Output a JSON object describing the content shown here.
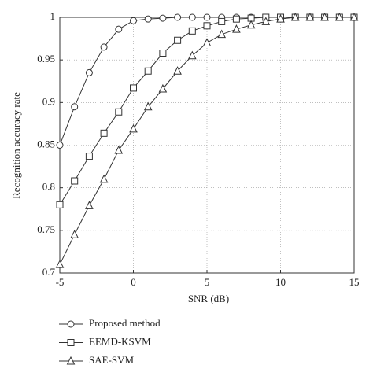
{
  "chart_data": {
    "type": "line",
    "xlabel": "SNR (dB)",
    "ylabel": "Recognition accuracy rate",
    "x": [
      -5,
      -4,
      -3,
      -2,
      -1,
      0,
      1,
      2,
      3,
      4,
      5,
      6,
      7,
      8,
      9,
      10,
      11,
      12,
      13,
      14,
      15
    ],
    "series": [
      {
        "name": "Proposed method",
        "color": "#333333",
        "marker": "circle",
        "values": [
          0.85,
          0.895,
          0.935,
          0.965,
          0.986,
          0.996,
          0.998,
          0.999,
          1,
          1,
          1,
          1,
          1,
          1,
          1,
          1,
          1,
          1,
          1,
          1,
          1
        ]
      },
      {
        "name": "EEMD-KSVM",
        "color": "#333333",
        "marker": "square",
        "values": [
          0.78,
          0.808,
          0.837,
          0.864,
          0.889,
          0.917,
          0.937,
          0.958,
          0.973,
          0.984,
          0.99,
          0.995,
          0.998,
          0.999,
          1,
          1,
          1,
          1,
          1,
          1,
          1
        ]
      },
      {
        "name": "SAE-SVM",
        "color": "#333333",
        "marker": "triangle",
        "values": [
          0.71,
          0.745,
          0.779,
          0.81,
          0.844,
          0.869,
          0.895,
          0.916,
          0.937,
          0.955,
          0.97,
          0.98,
          0.986,
          0.991,
          0.995,
          0.998,
          1,
          1,
          1,
          1,
          1
        ]
      }
    ],
    "xlim": [
      -5,
      15
    ],
    "xticks": [
      -5,
      0,
      5,
      10,
      15
    ],
    "ylim": [
      0.7,
      1
    ],
    "yticks": [
      0.7,
      0.75,
      0.8,
      0.85,
      0.9,
      0.95,
      1
    ],
    "grid": true,
    "legend": "bottom"
  }
}
